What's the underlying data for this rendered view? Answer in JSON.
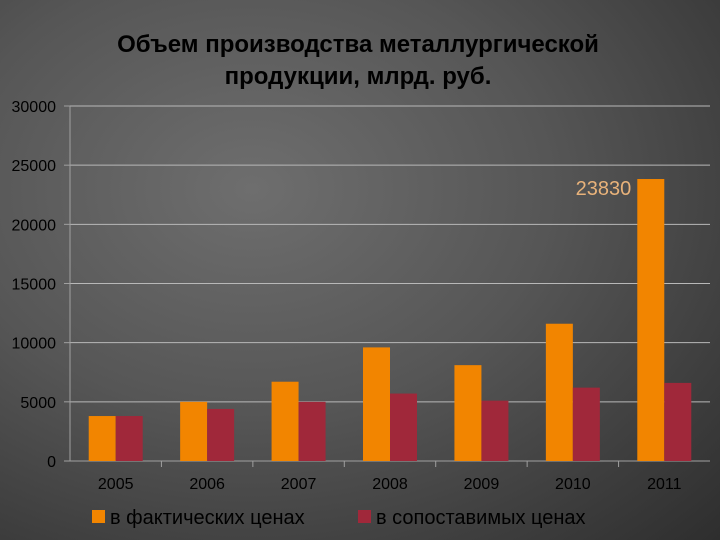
{
  "chart_data": {
    "type": "bar",
    "title": "Объем производства металлургической продукции, млрд. руб.",
    "title_lines": [
      "Объем производства металлургической",
      "продукции, млрд. руб."
    ],
    "categories": [
      "2005",
      "2006",
      "2007",
      "2008",
      "2009",
      "2010",
      "2011"
    ],
    "series": [
      {
        "name": "в фактических ценах",
        "color": "#f28500",
        "values": [
          3800,
          5000,
          6700,
          9600,
          8100,
          11600,
          23830
        ]
      },
      {
        "name": "в сопоставимых ценах",
        "color": "#a0283a",
        "values": [
          3800,
          4400,
          5000,
          5700,
          5100,
          6200,
          6600
        ]
      }
    ],
    "ylim": [
      0,
      30000
    ],
    "yticks": [
      "0",
      "5000",
      "10000",
      "15000",
      "20000",
      "25000",
      "30000"
    ],
    "ytick_values": [
      0,
      5000,
      10000,
      15000,
      20000,
      25000,
      30000
    ],
    "grid": true,
    "legend_position": "bottom",
    "data_labels": [
      {
        "series": 0,
        "index": 6,
        "text": "23830"
      }
    ]
  }
}
